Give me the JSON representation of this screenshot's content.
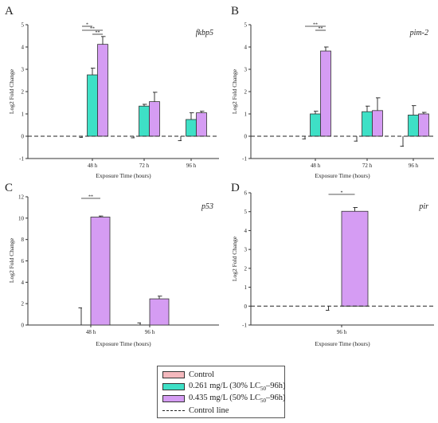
{
  "colors": {
    "control": "#f4b8bd",
    "low": "#3ee0c6",
    "high": "#d59cf3",
    "line": "#222222"
  },
  "chart_data": [
    {
      "type": "bar",
      "panel": "A",
      "gene": "fkbp5",
      "ylabel": "Log2 Fold Change",
      "xlabel": "Exposure Time (hours)",
      "ylim": [
        -1,
        5
      ],
      "yticks": [
        -1,
        0,
        1,
        2,
        3,
        4,
        5
      ],
      "categories": [
        "48 h",
        "72 h",
        "96 h"
      ],
      "series": [
        {
          "key": "control",
          "values": [
            0,
            0,
            0
          ],
          "errors": [
            0.05,
            0.07,
            0.2
          ]
        },
        {
          "key": "low",
          "values": [
            2.75,
            1.35,
            0.75
          ],
          "errors": [
            0.3,
            0.08,
            0.3
          ]
        },
        {
          "key": "high",
          "values": [
            4.12,
            1.55,
            1.05
          ],
          "errors": [
            0.35,
            0.42,
            0.07
          ]
        }
      ],
      "significance": [
        {
          "category": 0,
          "from": 0,
          "to": 1,
          "label": "*"
        },
        {
          "category": 0,
          "from": 0,
          "to": 2,
          "label": "**"
        },
        {
          "category": 0,
          "from": 1,
          "to": 2,
          "label": "**"
        }
      ]
    },
    {
      "type": "bar",
      "panel": "B",
      "gene": "pim-2",
      "ylabel": "Log2 Fold Change",
      "xlabel": "Exposure Time (hours)",
      "ylim": [
        -1,
        5
      ],
      "yticks": [
        -1,
        0,
        1,
        2,
        3,
        4,
        5
      ],
      "categories": [
        "48 h",
        "72 h",
        "96 h"
      ],
      "series": [
        {
          "key": "control",
          "values": [
            0,
            0,
            0
          ],
          "errors": [
            0.12,
            0.22,
            0.45
          ]
        },
        {
          "key": "low",
          "values": [
            1.0,
            1.1,
            0.95
          ],
          "errors": [
            0.12,
            0.25,
            0.42
          ]
        },
        {
          "key": "high",
          "values": [
            3.82,
            1.15,
            1.0
          ],
          "errors": [
            0.18,
            0.57,
            0.07
          ]
        }
      ],
      "significance": [
        {
          "category": 0,
          "from": 0,
          "to": 2,
          "label": "**"
        },
        {
          "category": 0,
          "from": 1,
          "to": 2,
          "label": "**"
        }
      ]
    },
    {
      "type": "bar",
      "panel": "C",
      "gene": "p53",
      "ylabel": "Log2 Fold Change",
      "xlabel": "Exposure Time (hours)",
      "ylim": [
        0,
        12
      ],
      "yticks": [
        0,
        2,
        4,
        6,
        8,
        10,
        12
      ],
      "categories": [
        "48 h",
        "96 h"
      ],
      "series": [
        {
          "key": "control",
          "values": [
            0,
            0
          ],
          "errors": [
            1.6,
            0.2
          ]
        },
        {
          "key": "high",
          "values": [
            10.1,
            2.45
          ],
          "errors": [
            0.1,
            0.25
          ]
        }
      ],
      "significance": [
        {
          "category": 0,
          "from": 0,
          "to": 1,
          "label": "**"
        }
      ]
    },
    {
      "type": "bar",
      "panel": "D",
      "gene": "pir",
      "ylabel": "Log2 Fold Change",
      "xlabel": "Exposure Time (hours)",
      "ylim": [
        -1,
        6
      ],
      "yticks": [
        -1,
        0,
        1,
        2,
        3,
        4,
        5,
        6
      ],
      "categories": [
        "96 h"
      ],
      "series": [
        {
          "key": "control",
          "values": [
            0
          ],
          "errors": [
            0.22
          ]
        },
        {
          "key": "high",
          "values": [
            5.02
          ],
          "errors": [
            0.2
          ]
        }
      ],
      "significance": [
        {
          "category": 0,
          "from": 0,
          "to": 1,
          "label": "*"
        }
      ]
    }
  ],
  "legend": {
    "control": "Control",
    "low_prefix": "0.261 mg/L (30% LC",
    "high_prefix": "0.435 mg/L (50% LC",
    "sub": "50",
    "suffix": "–96h)",
    "line": "Control line"
  }
}
